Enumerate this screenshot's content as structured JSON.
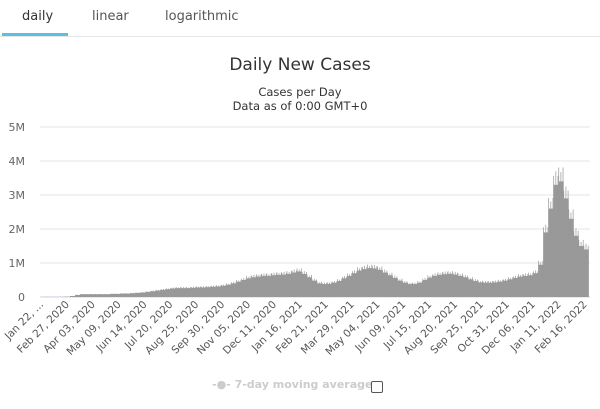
{
  "tabs": [
    {
      "label": "daily",
      "active": true
    },
    {
      "label": "linear"
    },
    {
      "label": "logarithmic"
    }
  ],
  "chart_data": {
    "type": "bar",
    "title": "Daily New Cases",
    "subtitle": "Cases per Day",
    "subtitle2": "Data as of 0:00 GMT+0",
    "ylim": [
      0,
      5000000
    ],
    "ytick_labels": [
      "0",
      "1M",
      "2M",
      "3M",
      "4M",
      "5M"
    ],
    "xtick_labels": [
      "Jan 22, ...",
      "Feb 27, 2020",
      "Apr 03, 2020",
      "May 09, 2020",
      "Jun 14, 2020",
      "Jul 20, 2020",
      "Aug 25, 2020",
      "Sep 30, 2020",
      "Nov 05, 2020",
      "Dec 11, 2020",
      "Jan 16, 2021",
      "Feb 21, 2021",
      "Mar 29, 2021",
      "May 04, 2021",
      "Jun 09, 2021",
      "Jul 15, 2021",
      "Aug 20, 2021",
      "Sep 25, 2021",
      "Oct 31, 2021",
      "Dec 06, 2021",
      "Jan 11, 2022",
      "Feb 16, 2022"
    ],
    "grid": true,
    "bar_color": "#999999",
    "x_start": "Jan 22, 2020",
    "x_step_days": 7,
    "values_millions": [
      0.001,
      0.003,
      0.002,
      0.002,
      0.005,
      0.01,
      0.03,
      0.06,
      0.08,
      0.08,
      0.08,
      0.08,
      0.08,
      0.08,
      0.09,
      0.09,
      0.1,
      0.1,
      0.11,
      0.12,
      0.13,
      0.15,
      0.17,
      0.19,
      0.21,
      0.23,
      0.25,
      0.26,
      0.26,
      0.26,
      0.27,
      0.28,
      0.28,
      0.29,
      0.3,
      0.31,
      0.33,
      0.36,
      0.4,
      0.45,
      0.5,
      0.55,
      0.58,
      0.6,
      0.62,
      0.62,
      0.64,
      0.65,
      0.66,
      0.68,
      0.72,
      0.75,
      0.68,
      0.58,
      0.48,
      0.4,
      0.38,
      0.39,
      0.42,
      0.47,
      0.55,
      0.62,
      0.7,
      0.78,
      0.82,
      0.85,
      0.84,
      0.8,
      0.72,
      0.64,
      0.56,
      0.48,
      0.42,
      0.38,
      0.38,
      0.42,
      0.5,
      0.57,
      0.62,
      0.65,
      0.67,
      0.68,
      0.66,
      0.62,
      0.58,
      0.52,
      0.47,
      0.43,
      0.42,
      0.42,
      0.43,
      0.45,
      0.48,
      0.52,
      0.56,
      0.6,
      0.62,
      0.64,
      0.7,
      0.95,
      1.9,
      2.6,
      3.3,
      3.4,
      2.9,
      2.3,
      1.8,
      1.5,
      1.4
    ],
    "legend": [
      {
        "label": "7-day moving average",
        "enabled": false
      }
    ]
  }
}
